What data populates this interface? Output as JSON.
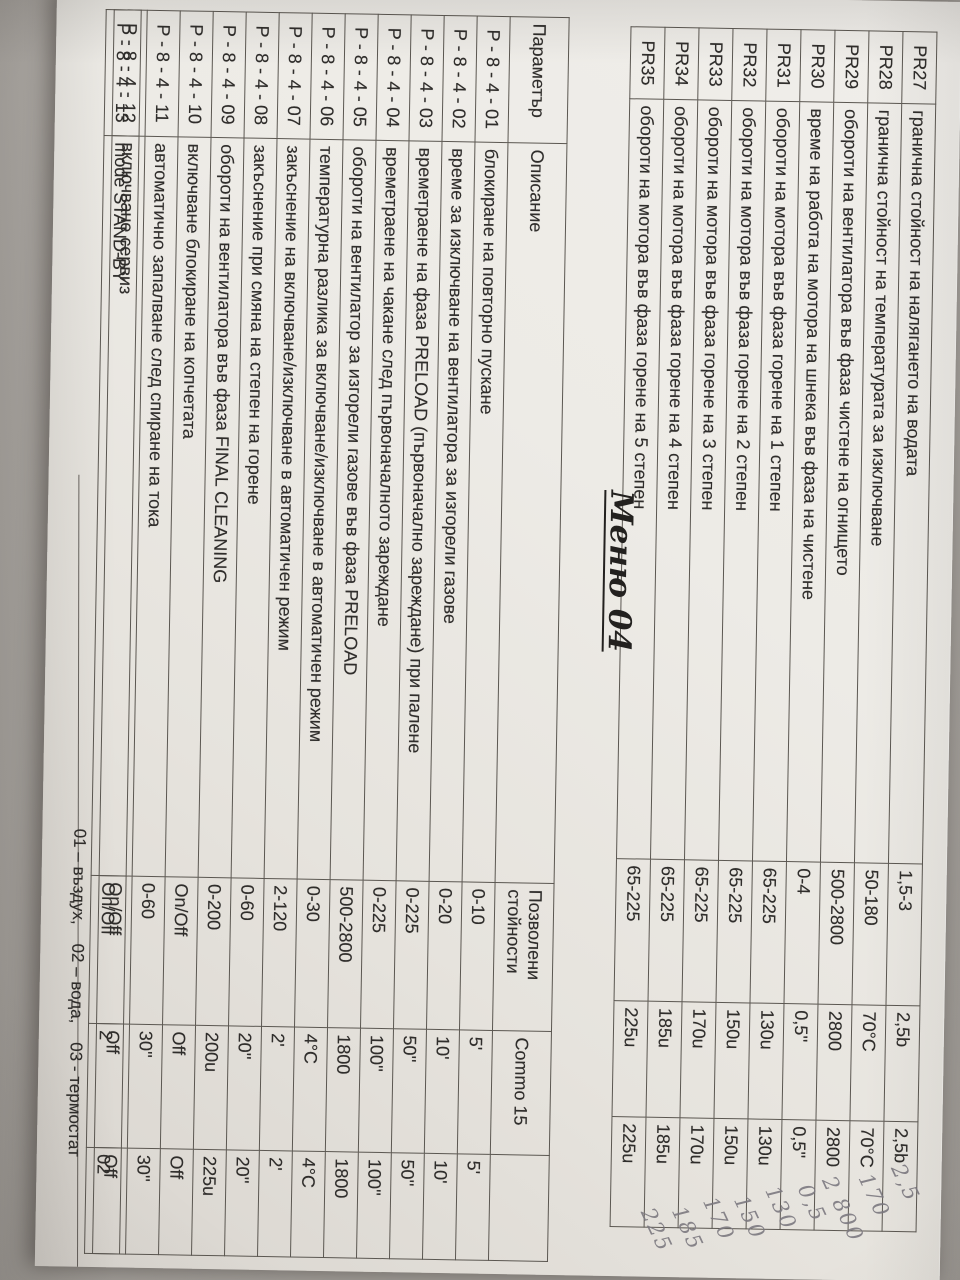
{
  "page": {
    "title": "Меню 04",
    "footer": "01 – въздух,    02 – вода,    03 - термостат"
  },
  "pr_table": {
    "rows": [
      {
        "code": "PR27",
        "desc": "гранична стойност на налягането на водата",
        "range": "1,5-3",
        "val1": "2,5b",
        "val2": "2,5b",
        "note": "2,5"
      },
      {
        "code": "PR28",
        "desc": "гранична стойност на температурата за  изключване",
        "range": "50-180",
        "val1": "70°C",
        "val2": "70°C",
        "note": "170"
      },
      {
        "code": "PR29",
        "desc": "обороти на вентилатора във фаза чистене на огнището",
        "range": "500-2800",
        "val1": "2800",
        "val2": "2800",
        "note": "2 800"
      },
      {
        "code": "PR30",
        "desc": "време на работа на мотора на шнека във фаза на чистене",
        "range": "0-4",
        "val1": "0,5''",
        "val2": "0,5''",
        "note": "0,5"
      },
      {
        "code": "PR31",
        "desc": "обороти на мотора във фаза горене на 1 степен",
        "range": "65-225",
        "val1": "130u",
        "val2": "130u",
        "note": "130"
      },
      {
        "code": "PR32",
        "desc": "обороти на мотора във фаза горене на 2 степен",
        "range": "65-225",
        "val1": "150u",
        "val2": "150u",
        "note": "150"
      },
      {
        "code": "PR33",
        "desc": "обороти на мотора във фаза горене на 3 степен",
        "range": "65-225",
        "val1": "170u",
        "val2": "170u",
        "note": "170"
      },
      {
        "code": "PR34",
        "desc": "обороти на мотора във фаза горене на 4 степен",
        "range": "65-225",
        "val1": "185u",
        "val2": "185u",
        "note": "185"
      },
      {
        "code": "PR35",
        "desc": "обороти на мотора във фаза горене на 5 степен",
        "range": "65-225",
        "val1": "225u",
        "val2": "225u",
        "note": "225"
      }
    ]
  },
  "param_table": {
    "headers": {
      "param": "Параметър",
      "desc": "Описание",
      "range": "Позволени стойности",
      "commo": "Commo 15",
      "last": ""
    },
    "rows": [
      {
        "param": "P - 8 - 4 - 01",
        "desc": "блокиране на повторно пускане",
        "range": "0-10",
        "val1": "5'",
        "val2": "5'"
      },
      {
        "param": "P - 8 - 4 - 02",
        "desc": "време за изключване на вентилатора за изгорели газове",
        "range": "0-20",
        "val1": "10'",
        "val2": "10'"
      },
      {
        "param": "P - 8 - 4 - 03",
        "desc": "времетраене на фаза PRELOAD (първоначално зареждане) при палене",
        "range": "0-225",
        "val1": "50''",
        "val2": "50''"
      },
      {
        "param": "P - 8 - 4 - 04",
        "desc": "времетраене на чакане след първоначалното зареждане",
        "range": "0-225",
        "val1": "100''",
        "val2": "100''"
      },
      {
        "param": "P - 8 - 4 - 05",
        "desc": "обороти на вентилатор за изгорели газове във фаза PRELOAD",
        "range": "500-2800",
        "val1": "1800",
        "val2": "1800"
      },
      {
        "param": "P - 8 - 4 - 06",
        "desc": "температурна разлика за включване/изключване в автоматичен режим",
        "range": "0-30",
        "val1": "4°C",
        "val2": "4°C"
      },
      {
        "param": "P - 8 - 4 - 07",
        "desc": "закъснение на включване/изключване в автоматичен режим",
        "range": "2-120",
        "val1": "2'",
        "val2": "2'"
      },
      {
        "param": "P - 8 - 4 - 08",
        "desc": "закъснение при смяна на степен на горене",
        "range": "0-60",
        "val1": "20''",
        "val2": "20''"
      },
      {
        "param": "P - 8 - 4 - 09",
        "desc": "обороти на вентилатора във фаза FINAL CLEANING",
        "range": "0-200",
        "val1": "200u",
        "val2": "225u"
      },
      {
        "param": "P - 8 - 4 - 10",
        "desc": "включване блокиране на копчетата",
        "range": "On/Off",
        "val1": "Off",
        "val2": "Off"
      },
      {
        "param": "P - 8 - 4 - 11",
        "desc": "автоматично запалване след спиране на тока",
        "range": "0-60",
        "val1": "30''",
        "val2": "30''"
      },
      {
        "param": "P - 8 - 4 - 12",
        "desc": "включване сервиз",
        "range": "On/Off",
        "val1": "Off",
        "val2": "Off"
      },
      {
        "param": "P - 8 - 4 - 13",
        "desc": "mode STAND-BY",
        "range": "On/Off",
        "val1": "2",
        "val2": "02"
      }
    ]
  }
}
